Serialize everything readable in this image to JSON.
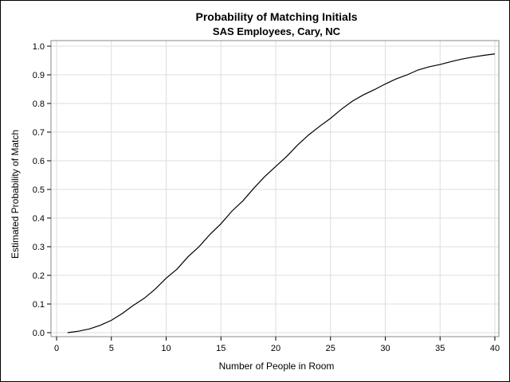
{
  "chart_data": {
    "type": "line",
    "title": "Probability of Matching Initials",
    "subtitle": "SAS Employees, Cary, NC",
    "xlabel": "Number of People in Room",
    "ylabel": "Estimated Probability of Match",
    "xlim": [
      0,
      40
    ],
    "ylim": [
      0.0,
      1.0
    ],
    "x_ticks": [
      0,
      5,
      10,
      15,
      20,
      25,
      30,
      35,
      40
    ],
    "x_tick_labels": [
      "0",
      "5",
      "10",
      "15",
      "20",
      "25",
      "30",
      "35",
      "40"
    ],
    "y_ticks": [
      0.0,
      0.1,
      0.2,
      0.3,
      0.4,
      0.5,
      0.6,
      0.7,
      0.8,
      0.9,
      1.0
    ],
    "y_tick_labels": [
      "0.0",
      "0.1",
      "0.2",
      "0.3",
      "0.4",
      "0.5",
      "0.6",
      "0.7",
      "0.8",
      "0.9",
      "1.0"
    ],
    "grid": true,
    "legend": "none",
    "line_color": "#000000",
    "grid_color": "#dddddd",
    "series": [
      {
        "x": [
          1,
          2,
          3,
          4,
          5,
          6,
          7,
          8,
          9,
          10,
          11,
          12,
          13,
          14,
          15,
          16,
          17,
          18,
          19,
          20,
          21,
          22,
          23,
          24,
          25,
          26,
          27,
          28,
          29,
          30,
          31,
          32,
          33,
          34,
          35,
          36,
          37,
          38,
          39,
          40
        ],
        "values": [
          0.0,
          0.005,
          0.013,
          0.026,
          0.043,
          0.067,
          0.095,
          0.12,
          0.152,
          0.19,
          0.222,
          0.265,
          0.3,
          0.343,
          0.38,
          0.424,
          0.46,
          0.504,
          0.545,
          0.58,
          0.615,
          0.655,
          0.69,
          0.72,
          0.748,
          0.78,
          0.808,
          0.83,
          0.848,
          0.868,
          0.886,
          0.9,
          0.917,
          0.928,
          0.936,
          0.946,
          0.955,
          0.962,
          0.968,
          0.973
        ]
      }
    ]
  }
}
